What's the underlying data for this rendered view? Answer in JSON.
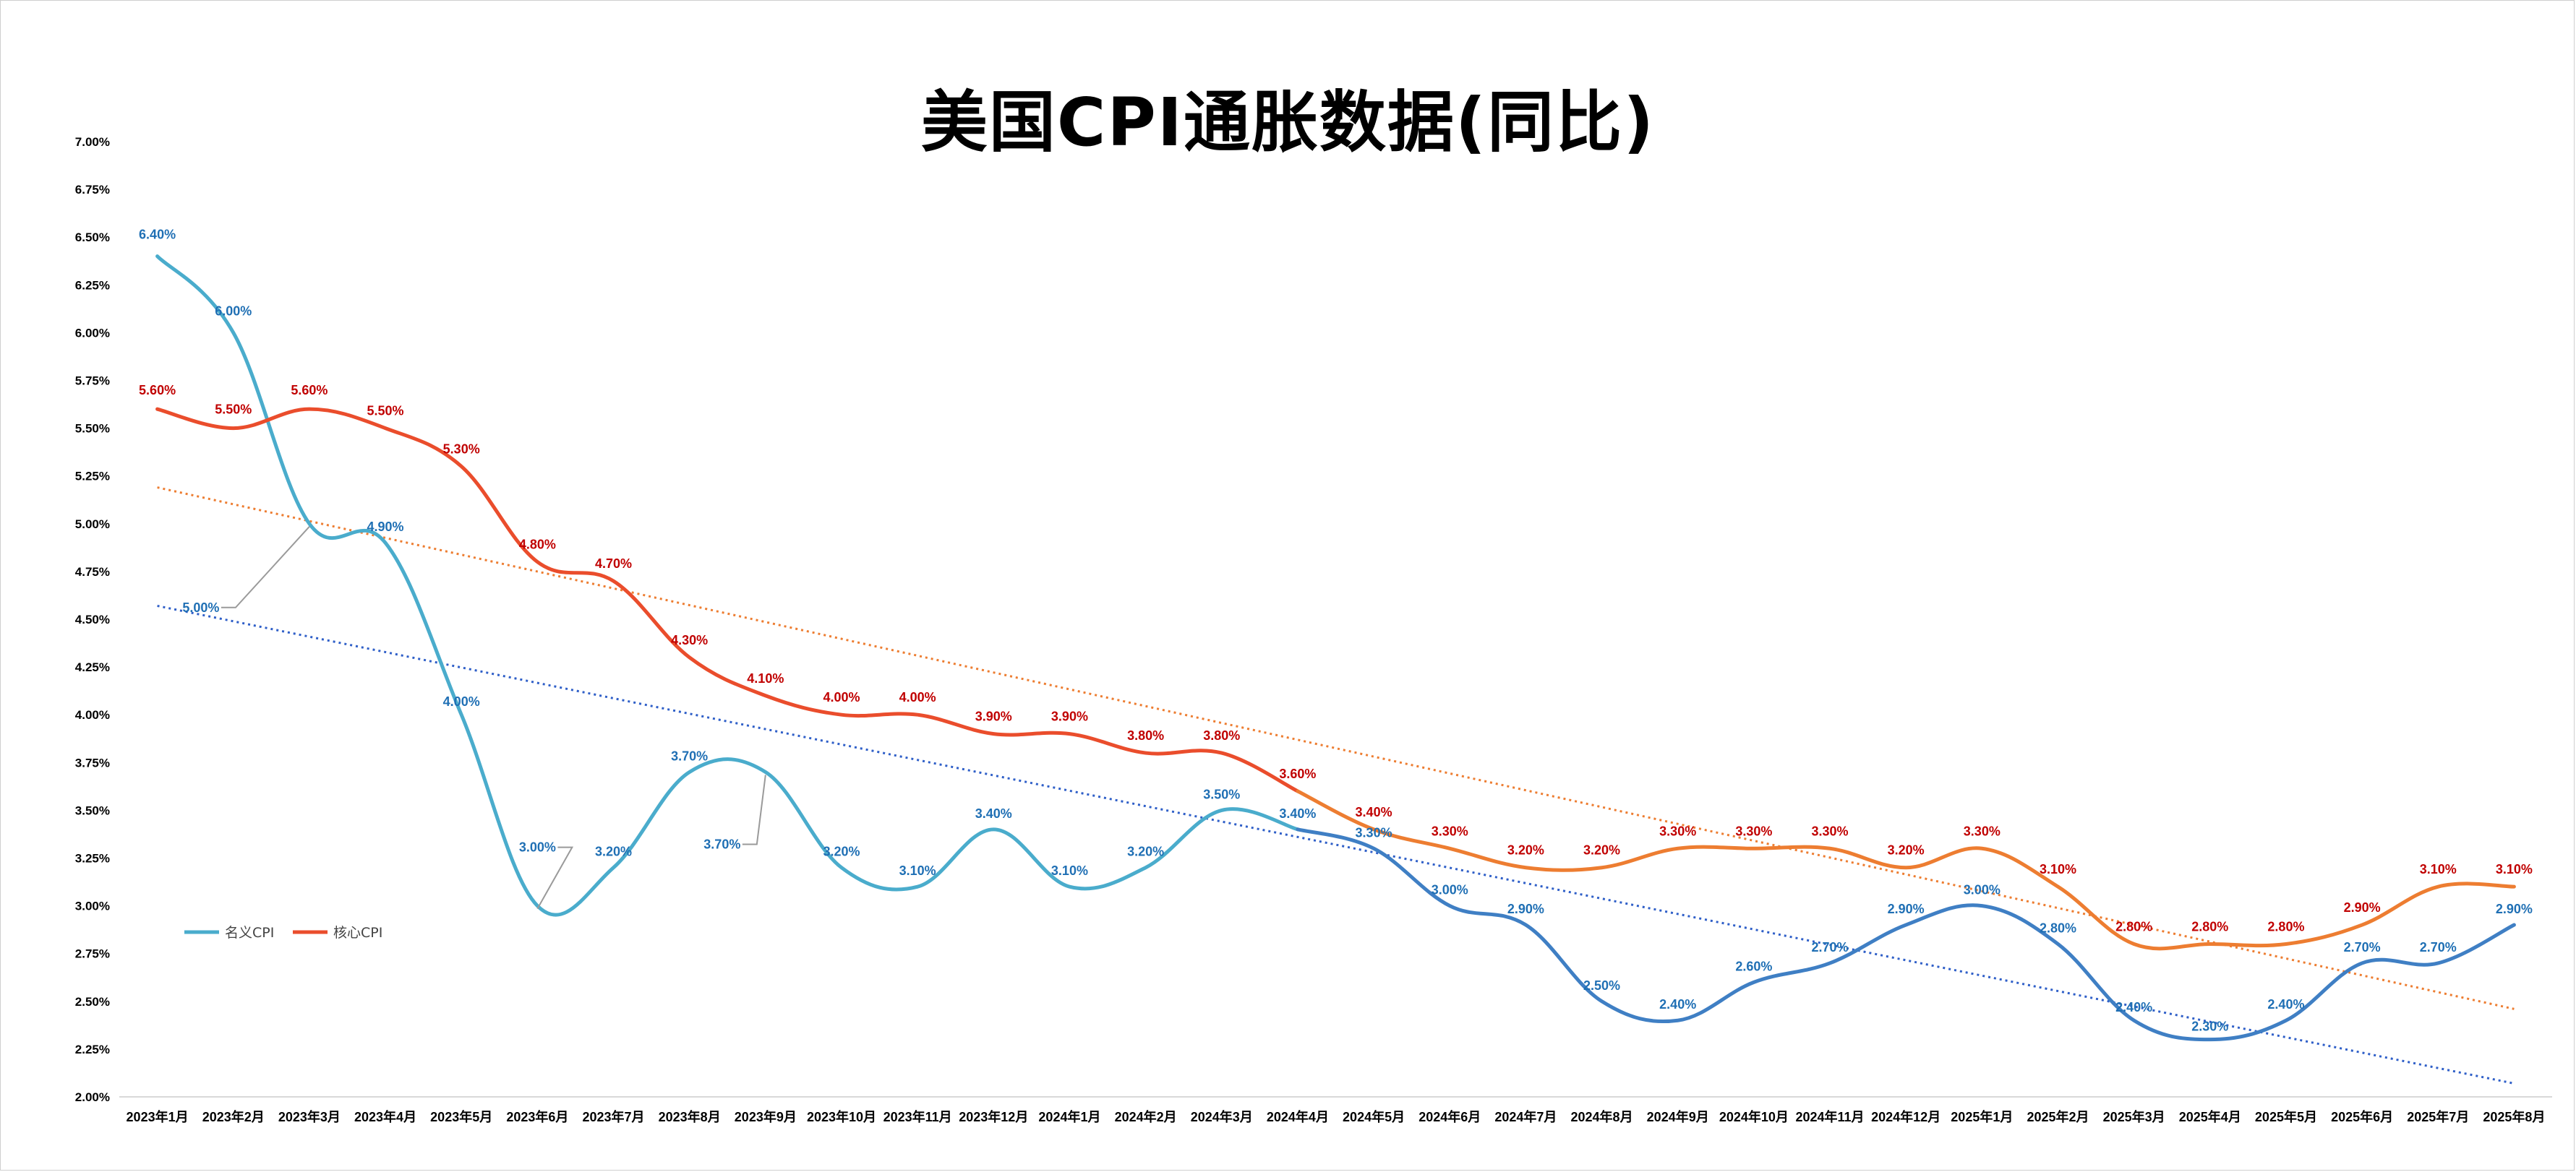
{
  "chart_data": {
    "type": "line",
    "title": "美国CPI通胀数据(同比)",
    "xlabel": "",
    "ylabel": "",
    "ylim": [
      2.0,
      7.0
    ],
    "y_ticks": [
      "2.00%",
      "2.25%",
      "2.50%",
      "2.75%",
      "3.00%",
      "3.25%",
      "3.50%",
      "3.75%",
      "4.00%",
      "4.25%",
      "4.50%",
      "4.75%",
      "5.00%",
      "5.25%",
      "5.50%",
      "5.75%",
      "6.00%",
      "6.25%",
      "6.50%",
      "6.75%",
      "7.00%"
    ],
    "categories": [
      "2023年1月",
      "2023年2月",
      "2023年3月",
      "2023年4月",
      "2023年5月",
      "2023年6月",
      "2023年7月",
      "2023年8月",
      "2023年9月",
      "2023年10月",
      "2023年11月",
      "2023年12月",
      "2024年1月",
      "2024年2月",
      "2024年3月",
      "2024年4月",
      "2024年5月",
      "2024年6月",
      "2024年7月",
      "2024年8月",
      "2024年9月",
      "2024年10月",
      "2024年11月",
      "2024年12月",
      "2025年1月",
      "2025年2月",
      "2025年3月",
      "2025年4月",
      "2025年5月",
      "2025年6月",
      "2025年7月",
      "2025年8月"
    ],
    "series": [
      {
        "name": "名义CPI",
        "color": "#4aaccc",
        "late_color": "#3f7fc4",
        "label_color": "#1f6fb4",
        "values": [
          6.4,
          6.0,
          5.0,
          4.9,
          4.0,
          3.0,
          3.2,
          3.7,
          3.7,
          3.2,
          3.1,
          3.4,
          3.1,
          3.2,
          3.5,
          3.4,
          3.3,
          3.0,
          2.9,
          2.5,
          2.4,
          2.6,
          2.7,
          2.9,
          3.0,
          2.8,
          2.4,
          2.3,
          2.4,
          2.7,
          2.7,
          2.9
        ],
        "labels": [
          "6.40%",
          "6.00%",
          "5.00%",
          "4.90%",
          "4.00%",
          "3.00%",
          "3.20%",
          "3.70%",
          "3.70%",
          "3.20%",
          "3.10%",
          "3.40%",
          "3.10%",
          "3.20%",
          "3.50%",
          "3.40%",
          "3.30%",
          "3.00%",
          "2.90%",
          "2.50%",
          "2.40%",
          "2.60%",
          "2.70%",
          "2.90%",
          "3.00%",
          "2.80%",
          "2.40%",
          "2.30%",
          "2.40%",
          "2.70%",
          "2.70%",
          "2.90%"
        ]
      },
      {
        "name": "核心CPI",
        "color": "#ea4d2c",
        "late_color": "#ed7d31",
        "label_color": "#c00000",
        "values": [
          5.6,
          5.5,
          5.6,
          5.5,
          5.3,
          4.8,
          4.7,
          4.3,
          4.1,
          4.0,
          4.0,
          3.9,
          3.9,
          3.8,
          3.8,
          3.6,
          3.4,
          3.3,
          3.2,
          3.2,
          3.3,
          3.3,
          3.3,
          3.2,
          3.3,
          3.1,
          2.8,
          2.8,
          2.8,
          2.9,
          3.1,
          3.1
        ],
        "labels": [
          "5.60%",
          "5.50%",
          "5.60%",
          "5.50%",
          "5.30%",
          "4.80%",
          "4.70%",
          "4.30%",
          "4.10%",
          "4.00%",
          "4.00%",
          "3.90%",
          "3.90%",
          "3.80%",
          "3.80%",
          "3.60%",
          "3.40%",
          "3.30%",
          "3.20%",
          "3.20%",
          "3.30%",
          "3.30%",
          "3.30%",
          "3.20%",
          "3.30%",
          "3.10%",
          "2.80%",
          "2.80%",
          "2.80%",
          "2.90%",
          "3.10%",
          "3.10%"
        ]
      }
    ],
    "trendlines": [
      {
        "series": "名义CPI",
        "color": "#2f5fc8",
        "start": 4.57,
        "end": 2.07
      },
      {
        "series": "核心CPI",
        "color": "#ed7d31",
        "start": 5.19,
        "end": 2.46
      }
    ],
    "legend": [
      "名义CPI",
      "核心CPI"
    ],
    "legend_position": "left-middle"
  }
}
